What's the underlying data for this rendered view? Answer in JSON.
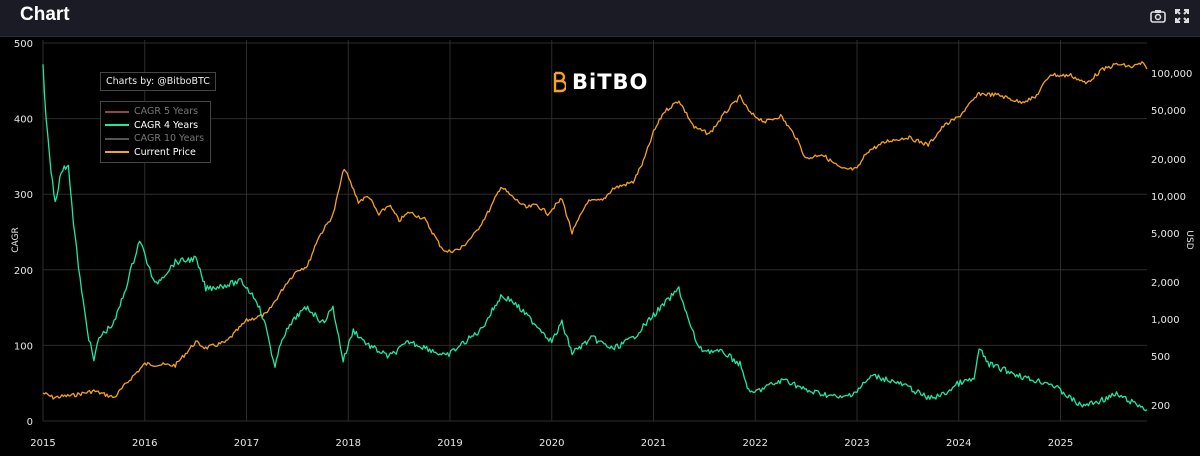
{
  "header": {
    "title": "Chart",
    "icons": [
      "camera-icon",
      "fullscreen-icon"
    ]
  },
  "credit": "Charts by: @BitboBTC",
  "logo_text": "BiTBO",
  "colors": {
    "cagr4": "#1de9a0",
    "price": "#f7a21b",
    "cagr5": "#8a4a4a",
    "cagr10": "#555555",
    "grid": "#2c2c2c",
    "background": "#000000"
  },
  "chart_data": {
    "type": "line",
    "xlabel": "",
    "ylabel_left": "CAGR",
    "ylabel_right": "USD",
    "x_ticks": [
      "2015",
      "2016",
      "2017",
      "2018",
      "2019",
      "2020",
      "2021",
      "2022",
      "2023",
      "2024",
      "2025"
    ],
    "xlim": [
      2015.0,
      2025.85
    ],
    "ylim_left": [
      0,
      500
    ],
    "y_ticks_left": [
      "0",
      "100",
      "200",
      "300",
      "400",
      "500"
    ],
    "y_scale_right": "log",
    "ylim_right": [
      130,
      160000
    ],
    "y_ticks_right": [
      {
        "v": 200,
        "label": "200"
      },
      {
        "v": 500,
        "label": "500"
      },
      {
        "v": 1000,
        "label": "1,000"
      },
      {
        "v": 2000,
        "label": "2,000"
      },
      {
        "v": 5000,
        "label": "5,000"
      },
      {
        "v": 10000,
        "label": "10,000"
      },
      {
        "v": 20000,
        "label": "20,000"
      },
      {
        "v": 50000,
        "label": "50,000"
      },
      {
        "v": 100000,
        "label": "100,000"
      }
    ],
    "grid": true,
    "legend_position": "top-left",
    "series": [
      {
        "name": "CAGR 5 Years",
        "visible": false,
        "axis": "left",
        "x": [],
        "y": []
      },
      {
        "name": "CAGR 4 Years",
        "visible": true,
        "axis": "left",
        "x": [
          2015.0,
          2015.03,
          2015.08,
          2015.12,
          2015.18,
          2015.25,
          2015.3,
          2015.38,
          2015.45,
          2015.5,
          2015.55,
          2015.7,
          2015.8,
          2015.95,
          2016.05,
          2016.1,
          2016.3,
          2016.5,
          2016.6,
          2016.8,
          2016.95,
          2017.1,
          2017.2,
          2017.28,
          2017.35,
          2017.5,
          2017.6,
          2017.75,
          2017.85,
          2017.95,
          2018.05,
          2018.2,
          2018.4,
          2018.6,
          2018.8,
          2018.96,
          2019.1,
          2019.3,
          2019.5,
          2019.6,
          2019.75,
          2019.9,
          2020.0,
          2020.1,
          2020.2,
          2020.4,
          2020.6,
          2020.8,
          2021.0,
          2021.25,
          2021.35,
          2021.45,
          2021.7,
          2021.85,
          2021.95,
          2022.1,
          2022.3,
          2022.5,
          2022.7,
          2022.85,
          2023.0,
          2023.15,
          2023.3,
          2023.5,
          2023.7,
          2023.85,
          2024.0,
          2024.15,
          2024.2,
          2024.3,
          2024.5,
          2024.7,
          2024.9,
          2025.0,
          2025.2,
          2025.35,
          2025.55,
          2025.7,
          2025.85
        ],
        "y": [
          470,
          400,
          330,
          290,
          330,
          340,
          260,
          170,
          110,
          80,
          110,
          130,
          170,
          240,
          200,
          180,
          210,
          215,
          175,
          180,
          185,
          160,
          120,
          70,
          110,
          140,
          150,
          130,
          150,
          80,
          120,
          100,
          85,
          105,
          95,
          85,
          100,
          120,
          165,
          160,
          140,
          120,
          105,
          130,
          90,
          110,
          95,
          110,
          140,
          175,
          130,
          95,
          90,
          75,
          35,
          45,
          55,
          40,
          35,
          30,
          40,
          60,
          55,
          45,
          30,
          35,
          50,
          55,
          95,
          75,
          65,
          55,
          50,
          40,
          20,
          25,
          35,
          25,
          15
        ]
      },
      {
        "name": "CAGR 10 Years",
        "visible": false,
        "axis": "left",
        "x": [],
        "y": []
      },
      {
        "name": "Current Price",
        "visible": true,
        "axis": "right",
        "x": [
          2015.0,
          2015.1,
          2015.3,
          2015.5,
          2015.7,
          2015.85,
          2016.0,
          2016.3,
          2016.5,
          2016.6,
          2016.8,
          2017.0,
          2017.2,
          2017.4,
          2017.5,
          2017.6,
          2017.7,
          2017.85,
          2017.96,
          2018.1,
          2018.2,
          2018.3,
          2018.4,
          2018.5,
          2018.6,
          2018.75,
          2018.9,
          2018.96,
          2019.1,
          2019.25,
          2019.4,
          2019.5,
          2019.6,
          2019.75,
          2019.85,
          2019.96,
          2020.1,
          2020.2,
          2020.35,
          2020.5,
          2020.6,
          2020.8,
          2020.9,
          2021.0,
          2021.1,
          2021.25,
          2021.4,
          2021.55,
          2021.7,
          2021.85,
          2021.95,
          2022.1,
          2022.25,
          2022.4,
          2022.5,
          2022.65,
          2022.85,
          2023.0,
          2023.1,
          2023.3,
          2023.5,
          2023.7,
          2023.85,
          2024.0,
          2024.2,
          2024.4,
          2024.6,
          2024.75,
          2024.9,
          2025.0,
          2025.1,
          2025.25,
          2025.4,
          2025.55,
          2025.7,
          2025.8,
          2025.85
        ],
        "y": [
          250,
          230,
          240,
          260,
          230,
          320,
          430,
          420,
          650,
          580,
          650,
          970,
          1100,
          2000,
          2500,
          2700,
          4500,
          7000,
          17000,
          9000,
          10000,
          7000,
          8500,
          6300,
          7400,
          6500,
          4000,
          3500,
          3700,
          5000,
          8000,
          12000,
          10000,
          8000,
          8500,
          7200,
          9500,
          5000,
          9000,
          9200,
          11500,
          13000,
          19000,
          33000,
          48000,
          60000,
          36000,
          32000,
          47000,
          64000,
          47000,
          40000,
          45000,
          30000,
          20000,
          22000,
          16500,
          16500,
          23000,
          28000,
          30000,
          26000,
          37000,
          44000,
          68000,
          66000,
          58000,
          63000,
          98000,
          95000,
          96000,
          82000,
          105000,
          118000,
          112000,
          120000,
          108000
        ]
      }
    ]
  }
}
